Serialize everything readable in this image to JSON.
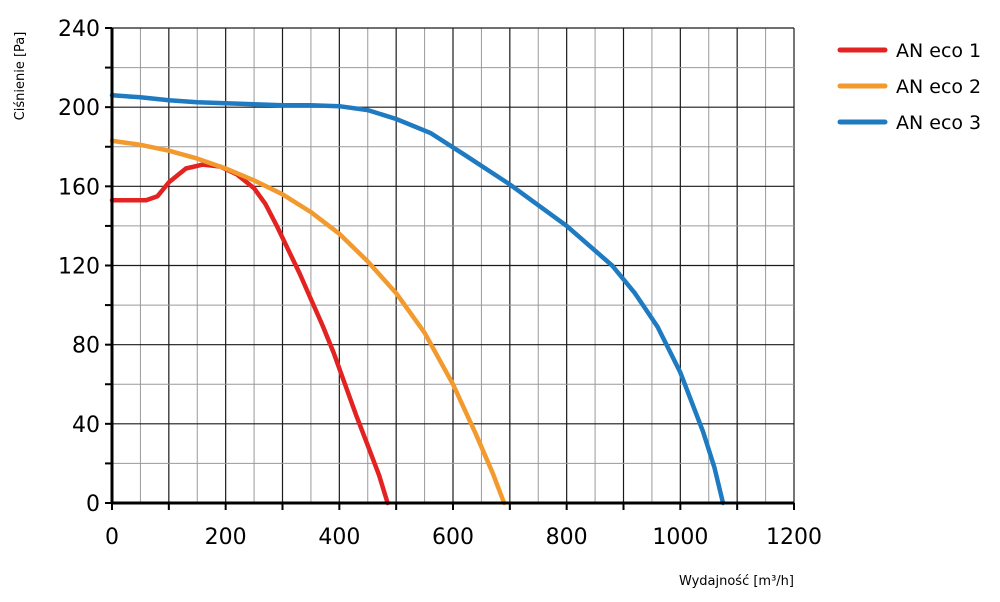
{
  "chart_data": {
    "type": "line",
    "title": "",
    "xlabel": "Wydajność [m³/h]",
    "ylabel": "Ciśnienie [Pa]",
    "xlim": [
      0,
      1200
    ],
    "ylim": [
      0,
      240
    ],
    "xticks": [
      "0",
      "200",
      "400",
      "600",
      "800",
      "1000",
      "1200"
    ],
    "yticks": [
      "0",
      "40",
      "80",
      "120",
      "160",
      "200",
      "240"
    ],
    "grid": true,
    "legend_position": "top-right",
    "series": [
      {
        "name": "AN eco 1",
        "color": "#e32321",
        "x": [
          0,
          20,
          40,
          60,
          80,
          100,
          130,
          160,
          190,
          220,
          250,
          270,
          290,
          310,
          330,
          350,
          370,
          390,
          410,
          430,
          450,
          470,
          485
        ],
        "y": [
          153,
          153,
          153,
          153,
          155,
          162,
          169,
          171,
          170,
          166,
          159,
          151,
          140,
          128,
          116,
          103,
          90,
          76,
          60,
          44,
          29,
          14,
          0
        ]
      },
      {
        "name": "AN eco 2",
        "color": "#f39a2e",
        "x": [
          0,
          50,
          100,
          150,
          200,
          250,
          300,
          350,
          400,
          450,
          500,
          550,
          600,
          640,
          670,
          690
        ],
        "y": [
          183,
          181,
          178,
          174,
          169,
          163,
          156,
          147,
          136,
          122,
          106,
          86,
          60,
          35,
          15,
          0
        ]
      },
      {
        "name": "AN eco 3",
        "color": "#1f7bc1",
        "x": [
          0,
          50,
          100,
          150,
          200,
          250,
          300,
          350,
          400,
          450,
          500,
          560,
          620,
          700,
          800,
          880,
          920,
          960,
          1000,
          1040,
          1060,
          1075
        ],
        "y": [
          206,
          205,
          203.5,
          202.5,
          202,
          201.5,
          201,
          201,
          200.5,
          198.5,
          194,
          187,
          176,
          161,
          140,
          120,
          106,
          89,
          66,
          36,
          18,
          0
        ]
      }
    ]
  }
}
